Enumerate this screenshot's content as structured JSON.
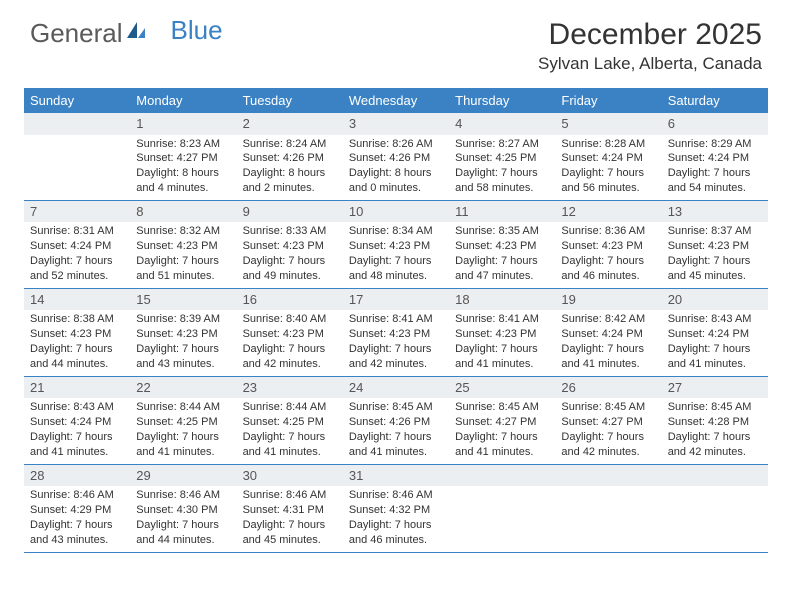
{
  "logo": {
    "part1": "General",
    "part2": "Blue"
  },
  "title": "December 2025",
  "location": "Sylvan Lake, Alberta, Canada",
  "colors": {
    "header_bg": "#3b82c4",
    "daynum_bg": "#eceff1",
    "row_border": "#3b82c4",
    "text": "#333333",
    "background": "#ffffff"
  },
  "fonts": {
    "title_size": 30,
    "location_size": 17,
    "day_header_size": 13,
    "cell_size": 11
  },
  "day_headers": [
    "Sunday",
    "Monday",
    "Tuesday",
    "Wednesday",
    "Thursday",
    "Friday",
    "Saturday"
  ],
  "weeks": [
    [
      {
        "n": "",
        "sunrise": "",
        "sunset": "",
        "daylight": ""
      },
      {
        "n": "1",
        "sunrise": "Sunrise: 8:23 AM",
        "sunset": "Sunset: 4:27 PM",
        "daylight": "Daylight: 8 hours and 4 minutes."
      },
      {
        "n": "2",
        "sunrise": "Sunrise: 8:24 AM",
        "sunset": "Sunset: 4:26 PM",
        "daylight": "Daylight: 8 hours and 2 minutes."
      },
      {
        "n": "3",
        "sunrise": "Sunrise: 8:26 AM",
        "sunset": "Sunset: 4:26 PM",
        "daylight": "Daylight: 8 hours and 0 minutes."
      },
      {
        "n": "4",
        "sunrise": "Sunrise: 8:27 AM",
        "sunset": "Sunset: 4:25 PM",
        "daylight": "Daylight: 7 hours and 58 minutes."
      },
      {
        "n": "5",
        "sunrise": "Sunrise: 8:28 AM",
        "sunset": "Sunset: 4:24 PM",
        "daylight": "Daylight: 7 hours and 56 minutes."
      },
      {
        "n": "6",
        "sunrise": "Sunrise: 8:29 AM",
        "sunset": "Sunset: 4:24 PM",
        "daylight": "Daylight: 7 hours and 54 minutes."
      }
    ],
    [
      {
        "n": "7",
        "sunrise": "Sunrise: 8:31 AM",
        "sunset": "Sunset: 4:24 PM",
        "daylight": "Daylight: 7 hours and 52 minutes."
      },
      {
        "n": "8",
        "sunrise": "Sunrise: 8:32 AM",
        "sunset": "Sunset: 4:23 PM",
        "daylight": "Daylight: 7 hours and 51 minutes."
      },
      {
        "n": "9",
        "sunrise": "Sunrise: 8:33 AM",
        "sunset": "Sunset: 4:23 PM",
        "daylight": "Daylight: 7 hours and 49 minutes."
      },
      {
        "n": "10",
        "sunrise": "Sunrise: 8:34 AM",
        "sunset": "Sunset: 4:23 PM",
        "daylight": "Daylight: 7 hours and 48 minutes."
      },
      {
        "n": "11",
        "sunrise": "Sunrise: 8:35 AM",
        "sunset": "Sunset: 4:23 PM",
        "daylight": "Daylight: 7 hours and 47 minutes."
      },
      {
        "n": "12",
        "sunrise": "Sunrise: 8:36 AM",
        "sunset": "Sunset: 4:23 PM",
        "daylight": "Daylight: 7 hours and 46 minutes."
      },
      {
        "n": "13",
        "sunrise": "Sunrise: 8:37 AM",
        "sunset": "Sunset: 4:23 PM",
        "daylight": "Daylight: 7 hours and 45 minutes."
      }
    ],
    [
      {
        "n": "14",
        "sunrise": "Sunrise: 8:38 AM",
        "sunset": "Sunset: 4:23 PM",
        "daylight": "Daylight: 7 hours and 44 minutes."
      },
      {
        "n": "15",
        "sunrise": "Sunrise: 8:39 AM",
        "sunset": "Sunset: 4:23 PM",
        "daylight": "Daylight: 7 hours and 43 minutes."
      },
      {
        "n": "16",
        "sunrise": "Sunrise: 8:40 AM",
        "sunset": "Sunset: 4:23 PM",
        "daylight": "Daylight: 7 hours and 42 minutes."
      },
      {
        "n": "17",
        "sunrise": "Sunrise: 8:41 AM",
        "sunset": "Sunset: 4:23 PM",
        "daylight": "Daylight: 7 hours and 42 minutes."
      },
      {
        "n": "18",
        "sunrise": "Sunrise: 8:41 AM",
        "sunset": "Sunset: 4:23 PM",
        "daylight": "Daylight: 7 hours and 41 minutes."
      },
      {
        "n": "19",
        "sunrise": "Sunrise: 8:42 AM",
        "sunset": "Sunset: 4:24 PM",
        "daylight": "Daylight: 7 hours and 41 minutes."
      },
      {
        "n": "20",
        "sunrise": "Sunrise: 8:43 AM",
        "sunset": "Sunset: 4:24 PM",
        "daylight": "Daylight: 7 hours and 41 minutes."
      }
    ],
    [
      {
        "n": "21",
        "sunrise": "Sunrise: 8:43 AM",
        "sunset": "Sunset: 4:24 PM",
        "daylight": "Daylight: 7 hours and 41 minutes."
      },
      {
        "n": "22",
        "sunrise": "Sunrise: 8:44 AM",
        "sunset": "Sunset: 4:25 PM",
        "daylight": "Daylight: 7 hours and 41 minutes."
      },
      {
        "n": "23",
        "sunrise": "Sunrise: 8:44 AM",
        "sunset": "Sunset: 4:25 PM",
        "daylight": "Daylight: 7 hours and 41 minutes."
      },
      {
        "n": "24",
        "sunrise": "Sunrise: 8:45 AM",
        "sunset": "Sunset: 4:26 PM",
        "daylight": "Daylight: 7 hours and 41 minutes."
      },
      {
        "n": "25",
        "sunrise": "Sunrise: 8:45 AM",
        "sunset": "Sunset: 4:27 PM",
        "daylight": "Daylight: 7 hours and 41 minutes."
      },
      {
        "n": "26",
        "sunrise": "Sunrise: 8:45 AM",
        "sunset": "Sunset: 4:27 PM",
        "daylight": "Daylight: 7 hours and 42 minutes."
      },
      {
        "n": "27",
        "sunrise": "Sunrise: 8:45 AM",
        "sunset": "Sunset: 4:28 PM",
        "daylight": "Daylight: 7 hours and 42 minutes."
      }
    ],
    [
      {
        "n": "28",
        "sunrise": "Sunrise: 8:46 AM",
        "sunset": "Sunset: 4:29 PM",
        "daylight": "Daylight: 7 hours and 43 minutes."
      },
      {
        "n": "29",
        "sunrise": "Sunrise: 8:46 AM",
        "sunset": "Sunset: 4:30 PM",
        "daylight": "Daylight: 7 hours and 44 minutes."
      },
      {
        "n": "30",
        "sunrise": "Sunrise: 8:46 AM",
        "sunset": "Sunset: 4:31 PM",
        "daylight": "Daylight: 7 hours and 45 minutes."
      },
      {
        "n": "31",
        "sunrise": "Sunrise: 8:46 AM",
        "sunset": "Sunset: 4:32 PM",
        "daylight": "Daylight: 7 hours and 46 minutes."
      },
      {
        "n": "",
        "sunrise": "",
        "sunset": "",
        "daylight": ""
      },
      {
        "n": "",
        "sunrise": "",
        "sunset": "",
        "daylight": ""
      },
      {
        "n": "",
        "sunrise": "",
        "sunset": "",
        "daylight": ""
      }
    ]
  ]
}
